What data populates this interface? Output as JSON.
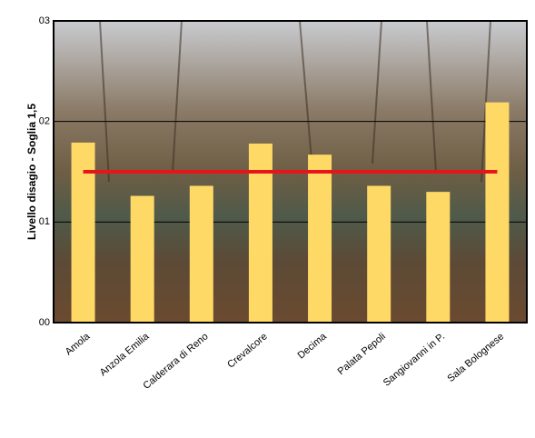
{
  "chart_data": {
    "type": "bar",
    "y_label": "Livello disagio - Soglia 1,5",
    "categories": [
      "Amola",
      "Anzola Emilia",
      "Calderara di Reno",
      "Crevalcore",
      "Decima",
      "Palata Pepoli",
      "Sangiovanni in P.",
      "Sala Bolognese"
    ],
    "values": [
      1.79,
      1.26,
      1.36,
      1.78,
      1.67,
      1.36,
      1.3,
      2.19
    ],
    "color": "#ffd966",
    "threshold": 1.5,
    "threshold_color": "#e8141c",
    "ylim": [
      0,
      3
    ],
    "yticks": [
      {
        "value": 0,
        "label": "00"
      },
      {
        "value": 1,
        "label": "01"
      },
      {
        "value": 2,
        "label": "02"
      },
      {
        "value": 3,
        "label": "03"
      }
    ],
    "grid": true
  }
}
